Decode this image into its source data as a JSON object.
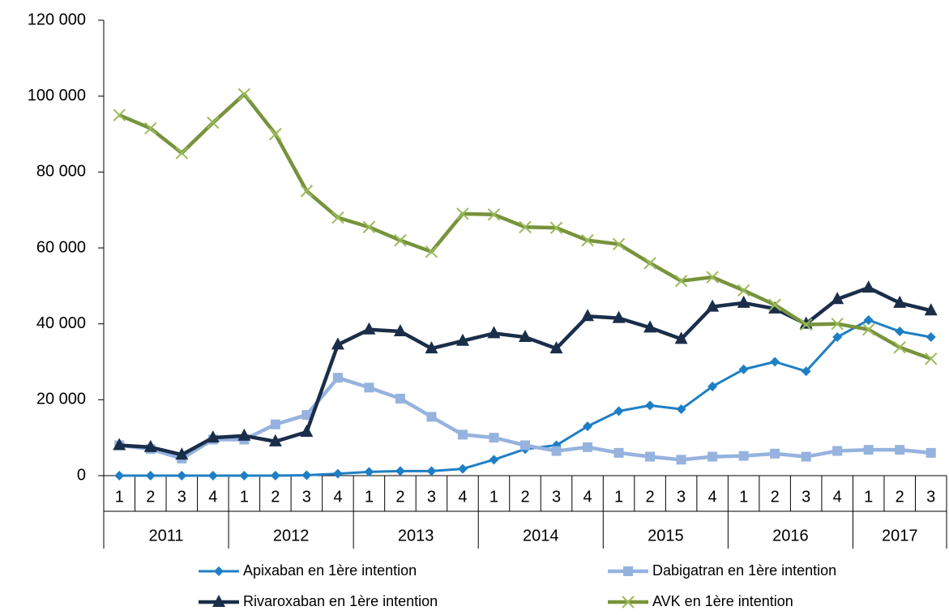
{
  "chart_data": {
    "type": "line",
    "groups": [
      {
        "label": "2011",
        "categories": [
          "1",
          "2",
          "3",
          "4"
        ]
      },
      {
        "label": "2012",
        "categories": [
          "1",
          "2",
          "3",
          "4"
        ]
      },
      {
        "label": "2013",
        "categories": [
          "1",
          "2",
          "3",
          "4"
        ]
      },
      {
        "label": "2014",
        "categories": [
          "1",
          "2",
          "3",
          "4"
        ]
      },
      {
        "label": "2015",
        "categories": [
          "1",
          "2",
          "3",
          "4"
        ]
      },
      {
        "label": "2016",
        "categories": [
          "1",
          "2",
          "3",
          "4"
        ]
      },
      {
        "label": "2017",
        "categories": [
          "1",
          "2",
          "3"
        ]
      }
    ],
    "ylim": [
      0,
      120000
    ],
    "yticks": [
      0,
      {
        "value": 20000,
        "label": "20 000"
      },
      {
        "value": 40000,
        "label": "40 000"
      },
      {
        "value": 60000,
        "label": "60 000"
      },
      {
        "value": 80000,
        "label": "80 000"
      },
      {
        "value": 100000,
        "label": "100 000"
      },
      {
        "value": 120000,
        "label": "120 000"
      }
    ],
    "grid": false,
    "legend": "bottom",
    "series": [
      {
        "name": "Apixaban en 1ère intention",
        "color": "#1f7fc4",
        "marker": "diamond",
        "values": [
          0,
          0,
          0,
          0,
          0,
          0,
          100,
          500,
          1000,
          1200,
          1200,
          1800,
          4200,
          7000,
          8000,
          13000,
          17000,
          18500,
          17500,
          23500,
          28000,
          30000,
          27500,
          36500,
          41000,
          38000,
          36500
        ]
      },
      {
        "name": "Dabigatran en 1ère intention",
        "color": "#95b3de",
        "marker": "square",
        "values": [
          8000,
          7000,
          4500,
          9500,
          9500,
          13500,
          16000,
          25800,
          23200,
          20300,
          15500,
          10800,
          10000,
          8000,
          6500,
          7500,
          6000,
          5000,
          4200,
          5000,
          5200,
          5800,
          5000,
          6500,
          6800,
          6800,
          6000
        ]
      },
      {
        "name": "Rivaroxaban en 1ère intention",
        "color": "#1a2e4a",
        "marker": "triangle",
        "values": [
          8000,
          7500,
          5500,
          10000,
          10500,
          9000,
          11500,
          34500,
          38500,
          38000,
          33500,
          35500,
          37500,
          36500,
          33500,
          42000,
          41500,
          39000,
          36000,
          44500,
          45500,
          44000,
          40000,
          46500,
          49500,
          45500,
          43500
        ]
      },
      {
        "name": "AVK en 1ère intention",
        "color": "#77933c",
        "marker": "x",
        "values": [
          95000,
          91500,
          85000,
          93000,
          100500,
          90000,
          75000,
          68000,
          65500,
          62000,
          59000,
          69000,
          68800,
          65500,
          65300,
          62000,
          61000,
          56000,
          51300,
          52300,
          48800,
          45000,
          39800,
          40000,
          38500,
          33800,
          30800
        ]
      }
    ]
  }
}
